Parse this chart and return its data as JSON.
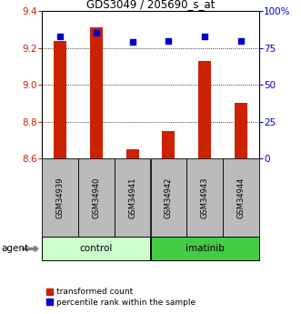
{
  "title": "GDS3049 / 205690_s_at",
  "samples": [
    "GSM34939",
    "GSM34940",
    "GSM34941",
    "GSM34942",
    "GSM34943",
    "GSM34944"
  ],
  "bar_values": [
    9.24,
    9.31,
    8.65,
    8.75,
    9.13,
    8.9
  ],
  "percentile_values": [
    83,
    85,
    79,
    80,
    83,
    80
  ],
  "ylim_left": [
    8.6,
    9.4
  ],
  "ylim_right": [
    0,
    100
  ],
  "yticks_left": [
    8.6,
    8.8,
    9.0,
    9.2,
    9.4
  ],
  "yticks_right": [
    0,
    25,
    50,
    75,
    100
  ],
  "bar_color": "#cc2200",
  "dot_color": "#0000cc",
  "bar_bottom": 8.6,
  "control_color": "#ccffcc",
  "imatinib_color": "#44cc44",
  "agent_label": "agent",
  "control_label": "control",
  "imatinib_label": "imatinib",
  "legend_bar_label": "transformed count",
  "legend_dot_label": "percentile rank within the sample",
  "left_axis_color": "#cc2200",
  "right_axis_color": "#0000cc",
  "background_color": "#ffffff",
  "sample_bg_color": "#bbbbbb"
}
